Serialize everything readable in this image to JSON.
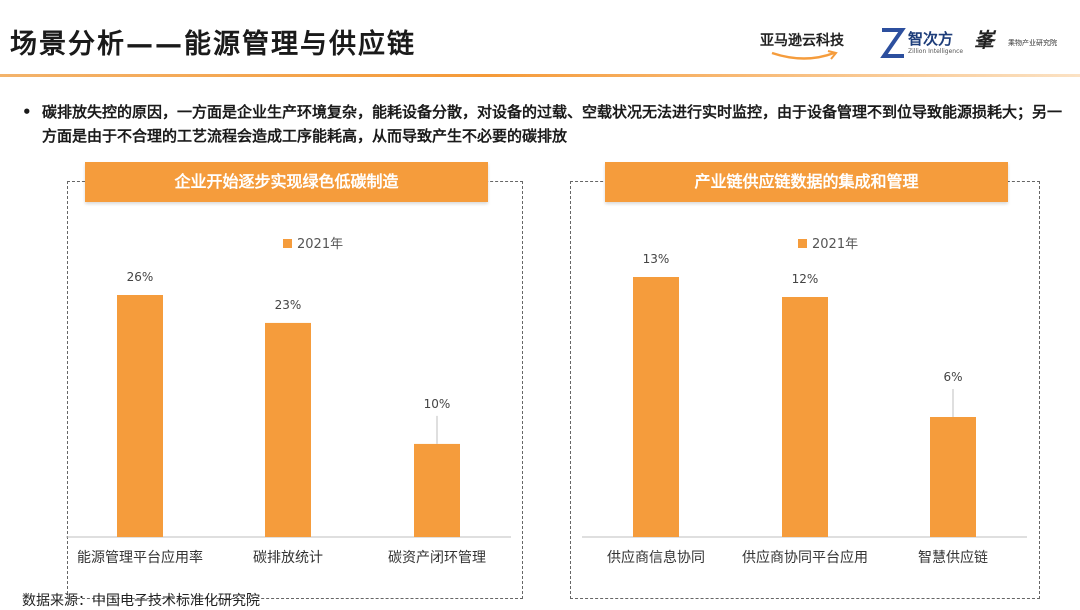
{
  "title": "场景分析——能源管理与供应链",
  "logos": {
    "amazon": "亚马逊云科技",
    "zhici": "智次方",
    "zhici_sub": "Zillion Intelligence",
    "fengbai_mark": "峯",
    "fengbai": "乘物产业研究院"
  },
  "bullet": "碳排放失控的原因，一方面是企业生产环境复杂，能耗设备分散，对设备的过载、空载状况无法进行实时监控，由于设备管理不到位导致能源损耗大；另一方面是由于不合理的工艺流程会造成工序能耗高，从而导致产生不必要的碳排放",
  "colors": {
    "accent": "#f59c3c",
    "bar": "#f59c3c",
    "axis": "#bfbfbf"
  },
  "panels": [
    {
      "header": "企业开始逐步实现绿色低碳制造"
    },
    {
      "header": "产业链供应链数据的集成和管理"
    }
  ],
  "chart_data": [
    {
      "type": "bar",
      "title": "",
      "categories": [
        "能源管理平台应用率",
        "碳排放统计",
        "碳资产闭环管理"
      ],
      "series": [
        {
          "name": "2021年",
          "values": [
            26,
            23,
            10
          ]
        }
      ],
      "value_labels": [
        "26%",
        "23%",
        "10%"
      ],
      "ylim": [
        0,
        30
      ],
      "legend": "top-center",
      "grid": false
    },
    {
      "type": "bar",
      "title": "",
      "categories": [
        "供应商信息协同",
        "供应商协同平台应用",
        "智慧供应链"
      ],
      "series": [
        {
          "name": "2021年",
          "values": [
            13,
            12,
            6
          ]
        }
      ],
      "value_labels": [
        "13%",
        "12%",
        "6%"
      ],
      "ylim": [
        0,
        15
      ],
      "legend": "top-center",
      "grid": false
    }
  ],
  "source": "数据来源：中国电子技术标准化研究院"
}
